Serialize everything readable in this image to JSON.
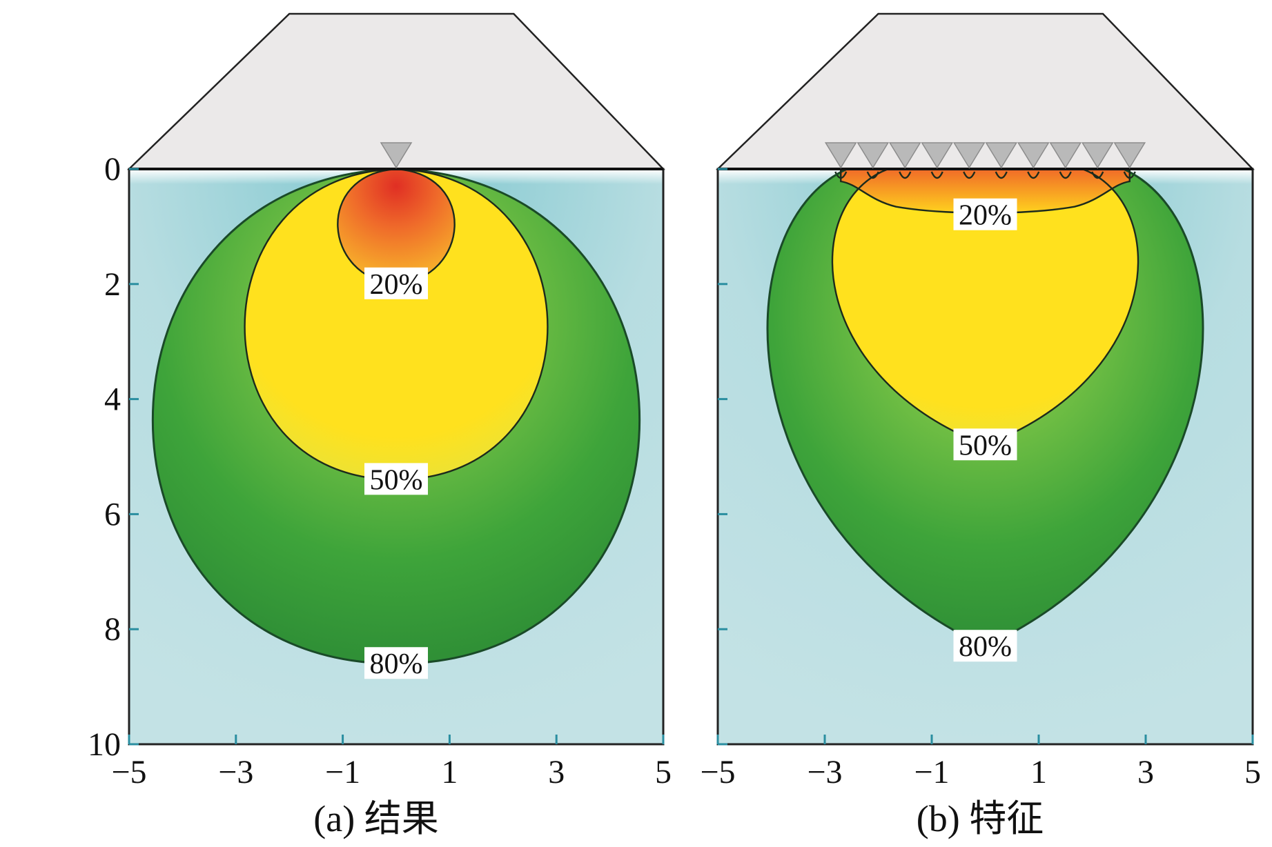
{
  "chart_data": [
    {
      "type": "heatmap",
      "title": "",
      "caption": "(a) 结果",
      "xlabel": "",
      "ylabel": "",
      "xlim": [
        -5,
        5
      ],
      "ylim": [
        10,
        0
      ],
      "x_ticks": [
        "−5",
        "−3",
        "−1",
        "1",
        "3",
        "5"
      ],
      "y_ticks": [
        "0",
        "2",
        "4",
        "6",
        "8",
        "10"
      ],
      "point_loads": [
        0
      ],
      "contours": [
        {
          "label": "20%",
          "top_depth": 0,
          "bottom_depth": 2.0,
          "half_width": 1.1
        },
        {
          "label": "50%",
          "top_depth": 0,
          "bottom_depth": 5.4,
          "half_width": 2.8
        },
        {
          "label": "80%",
          "top_depth": 0,
          "bottom_depth": 8.6,
          "half_width": 4.5
        }
      ],
      "colors": {
        "red": "#e03a2a",
        "orange": "#f08a2a",
        "yellow": "#ffe11e",
        "green": "#3fa33a",
        "light": "#bfe0e3"
      }
    },
    {
      "type": "heatmap",
      "title": "",
      "caption": "(b) 特征",
      "xlabel": "",
      "ylabel": "",
      "xlim": [
        -5,
        5
      ],
      "ylim": [
        10,
        0
      ],
      "x_ticks": [
        "−5",
        "−3",
        "−1",
        "1",
        "3",
        "5"
      ],
      "y_ticks": [
        "0",
        "2",
        "4",
        "6",
        "8",
        "10"
      ],
      "point_loads": [
        -2.7,
        -2.1,
        -1.5,
        -0.9,
        -0.3,
        0.3,
        0.9,
        1.5,
        2.1,
        2.7
      ],
      "contours": [
        {
          "label": "20%",
          "top_depth": 0,
          "bottom_depth": 0.8,
          "half_width": 2.7
        },
        {
          "label": "50%",
          "top_depth": 0,
          "bottom_depth": 4.8,
          "half_width": 3.3
        },
        {
          "label": "80%",
          "top_depth": 0,
          "bottom_depth": 8.3,
          "half_width": 4.7
        }
      ],
      "colors": {
        "red": "#e03a2a",
        "orange": "#f08a2a",
        "yellow": "#ffe11e",
        "green": "#3fa33a",
        "light": "#bfe0e3"
      }
    }
  ]
}
